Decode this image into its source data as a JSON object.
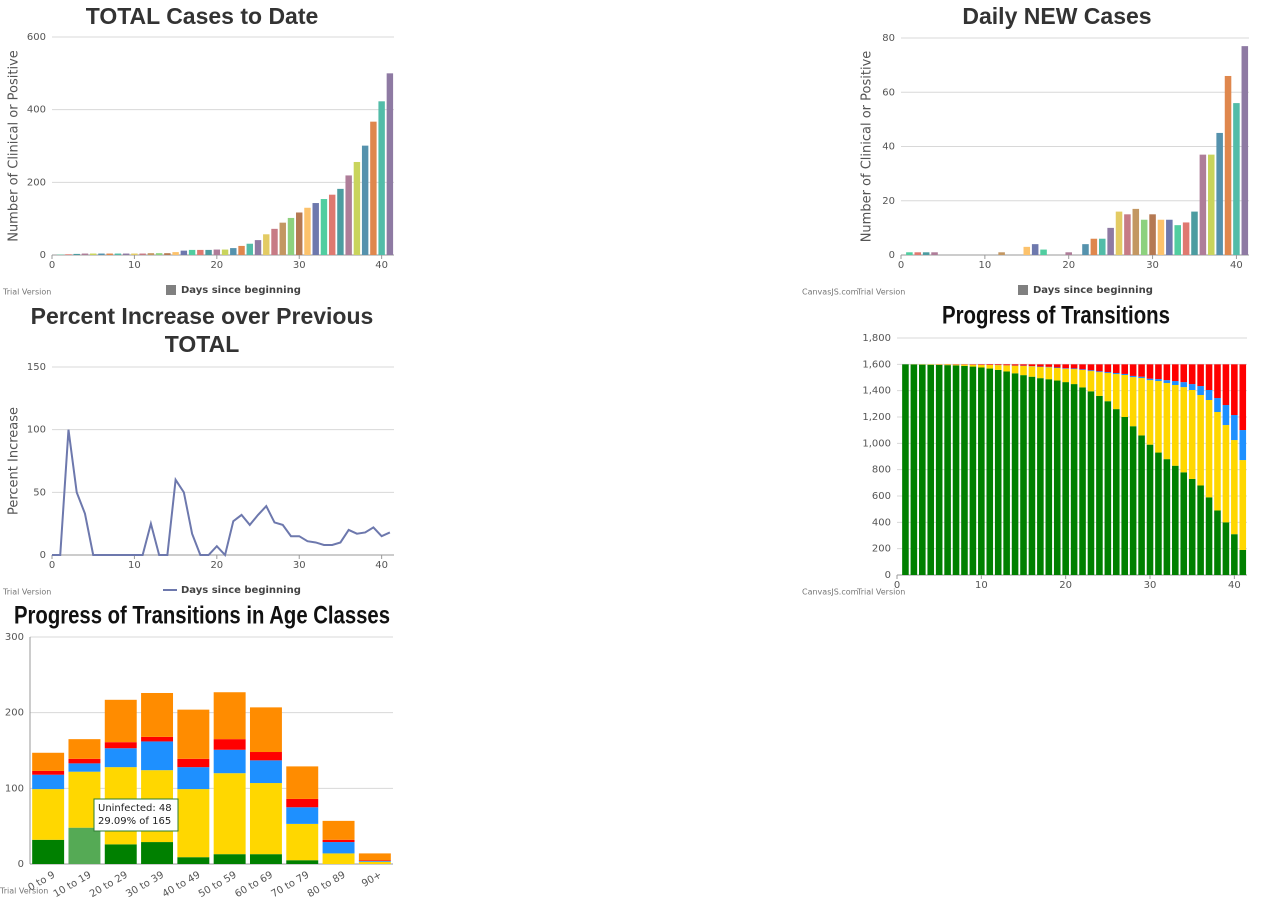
{
  "chart_data": [
    {
      "type": "bar",
      "title": "TOTAL Cases to Date",
      "ylabel": "Number of Clinical or Positive",
      "x": [
        0,
        1,
        2,
        3,
        4,
        5,
        6,
        7,
        8,
        9,
        10,
        11,
        12,
        13,
        14,
        15,
        16,
        17,
        18,
        19,
        20,
        21,
        22,
        23,
        24,
        25,
        26,
        27,
        28,
        29,
        30,
        31,
        32,
        33,
        34,
        35,
        36,
        37,
        38,
        39,
        40,
        41
      ],
      "series": [
        {
          "name": "Days since beginning",
          "values": [
            0,
            1,
            2,
            3,
            4,
            4,
            4,
            4,
            4,
            4,
            4,
            4,
            5,
            5,
            5,
            8,
            12,
            14,
            14,
            14,
            15,
            15,
            19,
            25,
            31,
            41,
            57,
            72,
            89,
            102,
            117,
            130,
            143,
            154,
            166,
            182,
            219,
            256,
            301,
            367,
            423,
            500
          ]
        }
      ],
      "colors": [
        "#6D78AD",
        "#51CDA0",
        "#DF7970",
        "#4C9CA0",
        "#AE7D99",
        "#C9D45C",
        "#5592AD",
        "#DF874D",
        "#52BCA8",
        "#8E7AA3",
        "#E3CB64",
        "#C77B85",
        "#C39762",
        "#8DD17E",
        "#B57952",
        "#FCC26C"
      ],
      "legend": {
        "color": "#808080"
      },
      "xlim": [
        0,
        41.5
      ],
      "xticks": [
        0,
        10,
        20,
        30,
        40
      ],
      "ylim": [
        0,
        600
      ],
      "yticks": [
        0,
        200,
        400,
        600
      ],
      "grid": true,
      "trial": "Trial Version"
    },
    {
      "type": "bar",
      "title": "Daily NEW Cases",
      "ylabel": "Number of Clinical or Positive",
      "x": [
        0,
        1,
        2,
        3,
        4,
        5,
        6,
        7,
        8,
        9,
        10,
        11,
        12,
        13,
        14,
        15,
        16,
        17,
        18,
        19,
        20,
        21,
        22,
        23,
        24,
        25,
        26,
        27,
        28,
        29,
        30,
        31,
        32,
        33,
        34,
        35,
        36,
        37,
        38,
        39,
        40,
        41
      ],
      "series": [
        {
          "name": "Days since beginning",
          "values": [
            0,
            1,
            1,
            1,
            1,
            0,
            0,
            0,
            0,
            0,
            0,
            0,
            1,
            0,
            0,
            3,
            4,
            2,
            0,
            0,
            1,
            0,
            4,
            6,
            6,
            10,
            16,
            15,
            17,
            13,
            15,
            13,
            13,
            11,
            12,
            16,
            37,
            37,
            45,
            66,
            56,
            77
          ]
        }
      ],
      "colors": [
        "#6D78AD",
        "#51CDA0",
        "#DF7970",
        "#4C9CA0",
        "#AE7D99",
        "#C9D45C",
        "#5592AD",
        "#DF874D",
        "#52BCA8",
        "#8E7AA3",
        "#E3CB64",
        "#C77B85",
        "#C39762",
        "#8DD17E",
        "#B57952",
        "#FCC26C"
      ],
      "legend": {
        "color": "#808080"
      },
      "xlim": [
        0,
        41.5
      ],
      "xticks": [
        0,
        10,
        20,
        30,
        40
      ],
      "ylim": [
        0,
        80
      ],
      "yticks": [
        0,
        20,
        40,
        60,
        80
      ],
      "grid": true,
      "trial": "Trial Version",
      "watermark": "CanvasJS.com"
    },
    {
      "type": "line",
      "title": "Percent Increase over Previous TOTAL",
      "ylabel": "Percent Increase",
      "x": [
        0,
        1,
        2,
        3,
        4,
        5,
        6,
        7,
        8,
        9,
        10,
        11,
        12,
        13,
        14,
        15,
        16,
        17,
        18,
        19,
        20,
        21,
        22,
        23,
        24,
        25,
        26,
        27,
        28,
        29,
        30,
        31,
        32,
        33,
        34,
        35,
        36,
        37,
        38,
        39,
        40,
        41
      ],
      "series": [
        {
          "name": "Days since beginning",
          "color": "#6D78AD",
          "values": [
            0,
            0,
            100,
            50,
            33,
            0,
            0,
            0,
            0,
            0,
            0,
            0,
            25,
            0,
            0,
            60,
            50,
            17,
            0,
            0,
            7,
            0,
            27,
            32,
            24,
            32,
            39,
            26,
            24,
            15,
            15,
            11,
            10,
            8,
            8,
            10,
            20,
            17,
            18,
            22,
            15,
            18
          ]
        }
      ],
      "legend": {
        "color": "#6D78AD"
      },
      "xlim": [
        0,
        41.5
      ],
      "xticks": [
        0,
        10,
        20,
        30,
        40
      ],
      "ylim": [
        0,
        150
      ],
      "yticks": [
        0,
        50,
        100,
        150
      ],
      "grid": true,
      "trial": "Trial Version"
    },
    {
      "type": "stacked_bar",
      "title": "Progress of Transitions",
      "x": [
        1,
        2,
        3,
        4,
        5,
        6,
        7,
        8,
        9,
        10,
        11,
        12,
        13,
        14,
        15,
        16,
        17,
        18,
        19,
        20,
        21,
        22,
        23,
        24,
        25,
        26,
        27,
        28,
        29,
        30,
        31,
        32,
        33,
        34,
        35,
        36,
        37,
        38,
        39,
        40,
        41
      ],
      "series": [
        {
          "color": "#008000",
          "values": [
            1600,
            1599,
            1598,
            1597,
            1596,
            1594,
            1592,
            1588,
            1583,
            1576,
            1568,
            1558,
            1546,
            1532,
            1518,
            1506,
            1495,
            1487,
            1477,
            1465,
            1450,
            1425,
            1395,
            1360,
            1320,
            1260,
            1200,
            1130,
            1060,
            990,
            930,
            880,
            830,
            780,
            730,
            680,
            590,
            490,
            400,
            310,
            190
          ]
        },
        {
          "color": "#FFD700",
          "values": [
            0,
            1,
            2,
            3,
            3,
            5,
            6,
            10,
            14,
            20,
            27,
            36,
            46,
            58,
            70,
            79,
            85,
            91,
            95,
            101,
            114,
            132,
            154,
            181,
            214,
            266,
            319,
            373,
            436,
            490,
            543,
            578,
            613,
            647,
            675,
            687,
            739,
            748,
            739,
            715,
            683
          ]
        },
        {
          "color": "#1E90FF",
          "values": [
            0,
            0,
            0,
            0,
            0,
            0,
            0,
            0,
            0,
            0,
            0,
            1,
            1,
            1,
            2,
            2,
            3,
            3,
            4,
            4,
            5,
            5,
            6,
            6,
            7,
            8,
            8,
            9,
            10,
            11,
            15,
            22,
            30,
            38,
            45,
            68,
            76,
            106,
            152,
            190,
            228
          ]
        },
        {
          "color": "#FF0000",
          "values": [
            0,
            0,
            0,
            0,
            1,
            1,
            2,
            2,
            3,
            4,
            5,
            5,
            7,
            9,
            10,
            13,
            17,
            19,
            24,
            30,
            31,
            38,
            45,
            53,
            59,
            66,
            73,
            88,
            94,
            109,
            112,
            120,
            127,
            135,
            150,
            165,
            195,
            256,
            309,
            385,
            499
          ]
        }
      ],
      "xlim": [
        0,
        41.5
      ],
      "xticks": [
        0,
        10,
        20,
        30,
        40
      ],
      "ylim": [
        0,
        1800
      ],
      "yticks": [
        0,
        200,
        400,
        600,
        800,
        {
          "value": 1000,
          "label": "1,000"
        },
        {
          "value": 1200,
          "label": "1,200"
        },
        {
          "value": 1400,
          "label": "1,400"
        },
        {
          "value": 1600,
          "label": "1,600"
        },
        {
          "value": 1800,
          "label": "1,800"
        }
      ],
      "grid": true,
      "trial": "Trial Version",
      "watermark": "CanvasJS.com"
    },
    {
      "type": "stacked_bar",
      "title": "Progress of Transitions in Age Classes",
      "categories": [
        "0 to 9",
        "10 to 19",
        "20 to 29",
        "30 to 39",
        "40 to 49",
        "50 to 59",
        "60 to 69",
        "70 to 79",
        "80 to 89",
        "90+"
      ],
      "series": [
        {
          "color": "#008000",
          "values": [
            32,
            48,
            26,
            29,
            9,
            13,
            13,
            5,
            0,
            0
          ]
        },
        {
          "color": "#FFD700",
          "values": [
            67,
            74,
            102,
            95,
            90,
            107,
            94,
            48,
            14,
            3
          ]
        },
        {
          "color": "#1E90FF",
          "values": [
            19,
            11,
            25,
            38,
            29,
            31,
            30,
            22,
            15,
            1
          ]
        },
        {
          "color": "#FF0000",
          "values": [
            5,
            6,
            8,
            6,
            11,
            14,
            11,
            11,
            3,
            1
          ]
        },
        {
          "color": "#FF8C00",
          "values": [
            24,
            26,
            56,
            58,
            65,
            62,
            59,
            43,
            25,
            9
          ]
        }
      ],
      "highlight": {
        "series": 0,
        "index": 1,
        "color": "#55AA55"
      },
      "tooltip": [
        "Uninfected: 48",
        "29.09% of 165"
      ],
      "ylim": [
        0,
        300
      ],
      "yticks": [
        0,
        100,
        200,
        300
      ],
      "grid": true,
      "trial": "Trial Version"
    }
  ]
}
